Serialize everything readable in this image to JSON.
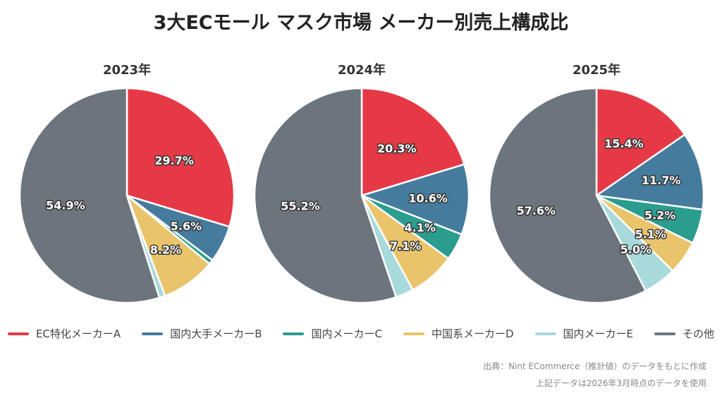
{
  "chart_data": {
    "type": "pie",
    "title": "3大ECモール マスク市場 メーカー別売上構成比",
    "categories": [
      "EC特化メーカーA",
      "国内大手メーカーB",
      "国内メーカーC",
      "中国系メーカーD",
      "国内メーカーE",
      "その他"
    ],
    "colors": [
      "#e63946",
      "#457b9d",
      "#2a9d8f",
      "#e9c46a",
      "#a8dadc",
      "#6c757d"
    ],
    "legend_position": "bottom",
    "charts": [
      {
        "title": "2023年",
        "values": [
          29.7,
          5.6,
          0.7,
          8.2,
          0.9,
          54.9
        ],
        "labels": [
          "29.7%",
          "5.6%",
          "",
          "8.2%",
          "",
          "54.9%"
        ]
      },
      {
        "title": "2024年",
        "values": [
          20.3,
          10.6,
          4.1,
          7.1,
          2.7,
          55.2
        ],
        "labels": [
          "20.3%",
          "10.6%",
          "4.1%",
          "7.1%",
          "",
          "55.2%"
        ]
      },
      {
        "title": "2025年",
        "values": [
          15.4,
          11.7,
          5.2,
          5.1,
          5.0,
          57.6
        ],
        "labels": [
          "15.4%",
          "11.7%",
          "5.2%",
          "5.1%",
          "5.0%",
          "57.6%"
        ]
      }
    ]
  },
  "footnotes": {
    "source": "出典：Nint ECommerce（推計値）のデータをもとに作成",
    "date": "上記データは2026年3月時点のデータを使用"
  }
}
